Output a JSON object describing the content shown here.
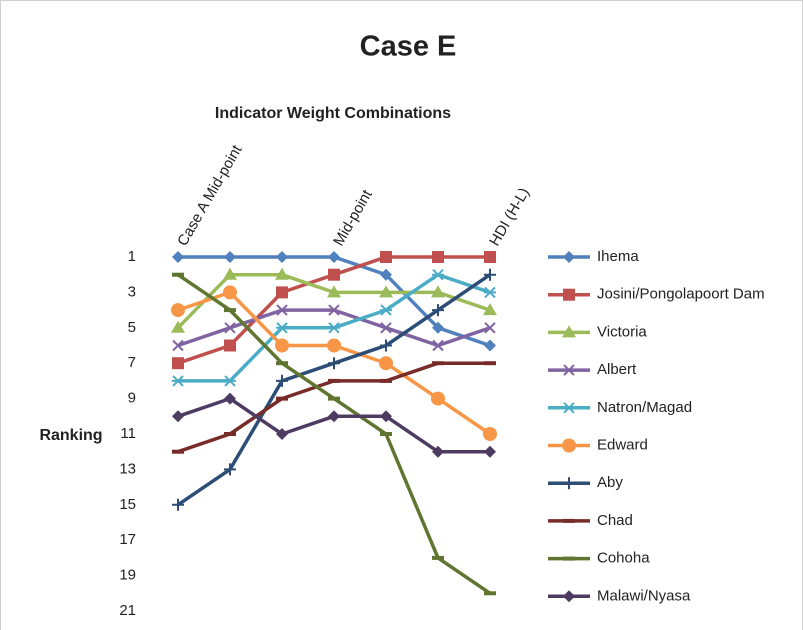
{
  "chart_data": {
    "type": "line",
    "title": "Case E",
    "subtitle": "Indicator Weight Combinations",
    "y_label": "Ranking",
    "categories": [
      "Case A Mid-point",
      null,
      null,
      "Mid-point",
      null,
      null,
      "HDI (H-L)"
    ],
    "ylim": [
      1,
      21
    ],
    "yticks": [
      1,
      3,
      5,
      7,
      9,
      11,
      13,
      15,
      17,
      19,
      21
    ],
    "y_inverted": true,
    "grid": false,
    "legend": "right",
    "series": [
      {
        "name": "Ihema",
        "color": "#4f81bd",
        "marker": "diamond",
        "values": [
          1,
          1,
          1,
          1,
          2,
          5,
          6
        ]
      },
      {
        "name": "Josini/Pongolapoort Dam",
        "color": "#c0504d",
        "marker": "square",
        "values": [
          7,
          6,
          3,
          2,
          1,
          1,
          1
        ]
      },
      {
        "name": "Victoria",
        "color": "#9bbb59",
        "marker": "triangle",
        "values": [
          5,
          2,
          2,
          3,
          3,
          3,
          4
        ]
      },
      {
        "name": "Albert",
        "color": "#8064a2",
        "marker": "x",
        "values": [
          6,
          5,
          4,
          4,
          5,
          6,
          5
        ]
      },
      {
        "name": "Natron/Magad",
        "color": "#4bacc6",
        "marker": "star",
        "values": [
          8,
          8,
          5,
          5,
          4,
          2,
          3
        ]
      },
      {
        "name": "Edward",
        "color": "#f79646",
        "marker": "circle",
        "values": [
          4,
          3,
          6,
          6,
          7,
          9,
          11
        ]
      },
      {
        "name": "Aby",
        "color": "#2c4d75",
        "marker": "plus",
        "values": [
          15,
          13,
          8,
          7,
          6,
          4,
          2
        ]
      },
      {
        "name": "Chad",
        "color": "#772c2a",
        "marker": "dash",
        "values": [
          12,
          11,
          9,
          8,
          8,
          7,
          7
        ]
      },
      {
        "name": "Cohoha",
        "color": "#5f7530",
        "marker": "dash",
        "values": [
          2,
          4,
          7,
          9,
          11,
          18,
          20
        ]
      },
      {
        "name": "Malawi/Nyasa",
        "color": "#4d3b62",
        "marker": "diamond",
        "values": [
          10,
          9,
          11,
          10,
          10,
          12,
          12
        ]
      }
    ]
  }
}
